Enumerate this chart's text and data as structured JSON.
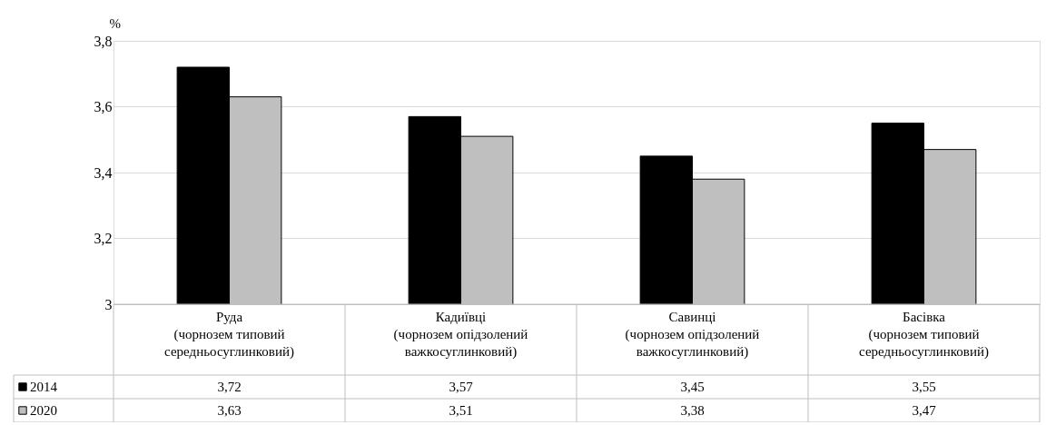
{
  "chart_data": {
    "type": "bar",
    "ylabel": "%",
    "categories": [
      "Руда\n(чорнозем типовий\nсередньосуглинковий)",
      "Кадиївці\n(чорнозем опідзолений\nважкосуглинковий)",
      "Савинці\n(чорнозем опідзолений\nважкосуглинковий)",
      "Басівка\n(чорнозем типовий\nсередньосуглинковий)"
    ],
    "series": [
      {
        "name": "2014",
        "color": "#000000",
        "values": [
          3.72,
          3.57,
          3.45,
          3.55
        ],
        "value_labels": [
          "3,72",
          "3,57",
          "3,45",
          "3,55"
        ]
      },
      {
        "name": "2020",
        "color": "#bfbfbf",
        "values": [
          3.63,
          3.51,
          3.38,
          3.47
        ],
        "value_labels": [
          "3,63",
          "3,51",
          "3,38",
          "3,47"
        ]
      }
    ],
    "ylim": [
      3,
      3.8
    ],
    "yticks": [
      {
        "value": 3,
        "label": "3"
      },
      {
        "value": 3.2,
        "label": "3,2"
      },
      {
        "value": 3.4,
        "label": "3,4"
      },
      {
        "value": 3.6,
        "label": "3,6"
      },
      {
        "value": 3.8,
        "label": "3,8"
      }
    ],
    "grid": "y",
    "legend": "bottom left"
  }
}
